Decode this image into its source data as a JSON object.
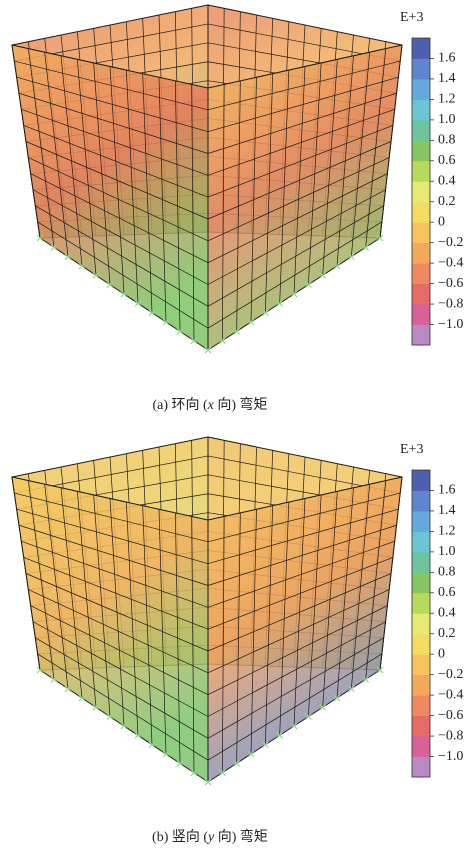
{
  "figures": [
    {
      "caption": {
        "prefix": "(a) 环向 (",
        "variable": "x",
        "suffix": " 向) 弯矩"
      },
      "colorbar": {
        "scale_label": "E+3",
        "lim": [
          -1.2,
          1.8
        ],
        "ticks": [
          1.6,
          1.4,
          1.2,
          {
            "value": 1,
            "label": "1.0"
          },
          0.8,
          0.6,
          0.4,
          0.2,
          0,
          {
            "value": -0.2,
            "label": "−0.2"
          },
          {
            "value": -0.4,
            "label": "−0.4"
          },
          {
            "value": -0.6,
            "label": "−0.6"
          },
          {
            "value": -0.8,
            "label": "−0.8"
          },
          {
            "value": -1,
            "label": "−1.0"
          }
        ],
        "colors": [
          "#b98ac6",
          "#d9609a",
          "#e86a66",
          "#ee8a60",
          "#f3a85c",
          "#f6c35e",
          "#f3dc62",
          "#e6ea72",
          "#b8da5c",
          "#86c662",
          "#6cc49c",
          "#69c6d2",
          "#66a9de",
          "#5f86cc",
          "#4e5fae"
        ]
      }
    },
    {
      "caption": {
        "prefix": "(b) 竖向 (",
        "variable": "y",
        "suffix": " 向) 弯矩"
      },
      "colorbar": {
        "scale_label": "E+3",
        "lim": [
          -1.2,
          1.8
        ],
        "ticks": [
          1.6,
          1.4,
          1.2,
          {
            "value": 1,
            "label": "1.0"
          },
          0.8,
          0.6,
          0.4,
          0.2,
          0,
          {
            "value": -0.2,
            "label": "−0.2"
          },
          {
            "value": -0.4,
            "label": "−0.4"
          },
          {
            "value": -0.6,
            "label": "−0.6"
          },
          {
            "value": -0.8,
            "label": "−0.8"
          },
          {
            "value": -1,
            "label": "−1.0"
          }
        ],
        "colors": [
          "#b98ac6",
          "#d9609a",
          "#e86a66",
          "#ee8a60",
          "#f3a85c",
          "#f6c35e",
          "#f3dc62",
          "#e6ea72",
          "#b8da5c",
          "#86c662",
          "#6cc49c",
          "#69c6d2",
          "#66a9de",
          "#5f86cc",
          "#4e5fae"
        ]
      }
    }
  ]
}
